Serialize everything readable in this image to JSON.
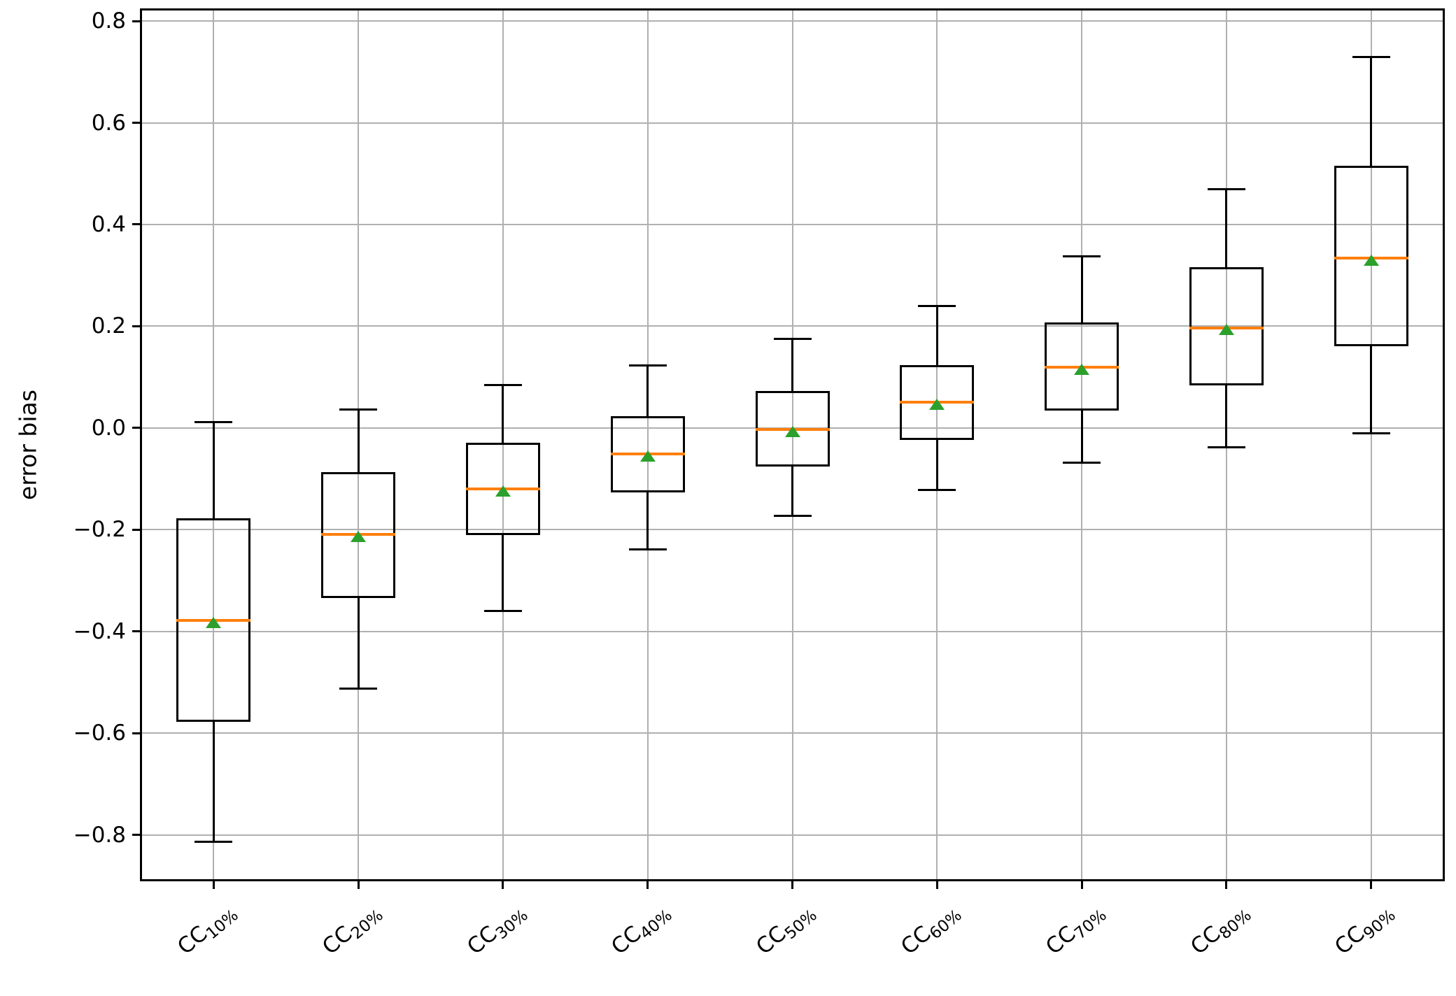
{
  "chart_data": {
    "type": "box",
    "title": "",
    "xlabel": "",
    "ylabel": "error bias",
    "ylim": [
      -0.888,
      0.822
    ],
    "grid": true,
    "ytick_values": [
      0.8,
      0.6,
      0.4,
      0.2,
      0.0,
      -0.2,
      -0.4,
      -0.6,
      -0.8
    ],
    "ytick_labels": [
      "0.8",
      "0.6",
      "0.4",
      "0.2",
      "0.0",
      "−0.2",
      "−0.4",
      "−0.6",
      "−0.8"
    ],
    "categories": [
      {
        "base": "CC",
        "sub": "10%"
      },
      {
        "base": "CC",
        "sub": "20%"
      },
      {
        "base": "CC",
        "sub": "30%"
      },
      {
        "base": "CC",
        "sub": "40%"
      },
      {
        "base": "CC",
        "sub": "50%"
      },
      {
        "base": "CC",
        "sub": "60%"
      },
      {
        "base": "CC",
        "sub": "70%"
      },
      {
        "base": "CC",
        "sub": "80%"
      },
      {
        "base": "CC",
        "sub": "90%"
      }
    ],
    "boxes": [
      {
        "label": "CC_10%",
        "whislo": -0.813,
        "q1": -0.577,
        "med": -0.378,
        "q3": -0.178,
        "whishi": 0.011,
        "mean": -0.382
      },
      {
        "label": "CC_20%",
        "whislo": -0.512,
        "q1": -0.334,
        "med": -0.209,
        "q3": -0.087,
        "whishi": 0.037,
        "mean": -0.213
      },
      {
        "label": "CC_30%",
        "whislo": -0.36,
        "q1": -0.211,
        "med": -0.12,
        "q3": -0.029,
        "whishi": 0.085,
        "mean": -0.124
      },
      {
        "label": "CC_40%",
        "whislo": -0.238,
        "q1": -0.126,
        "med": -0.051,
        "q3": 0.024,
        "whishi": 0.123,
        "mean": -0.055
      },
      {
        "label": "CC_50%",
        "whislo": -0.172,
        "q1": -0.075,
        "med": -0.003,
        "q3": 0.073,
        "whishi": 0.175,
        "mean": -0.007
      },
      {
        "label": "CC_60%",
        "whislo": -0.121,
        "q1": -0.023,
        "med": 0.051,
        "q3": 0.124,
        "whishi": 0.24,
        "mean": 0.047
      },
      {
        "label": "CC_70%",
        "whislo": -0.068,
        "q1": 0.034,
        "med": 0.119,
        "q3": 0.207,
        "whishi": 0.337,
        "mean": 0.115
      },
      {
        "label": "CC_80%",
        "whislo": -0.038,
        "q1": 0.084,
        "med": 0.197,
        "q3": 0.316,
        "whishi": 0.469,
        "mean": 0.194
      },
      {
        "label": "CC_90%",
        "whislo": -0.01,
        "q1": 0.161,
        "med": 0.334,
        "q3": 0.515,
        "whishi": 0.729,
        "mean": 0.33
      }
    ]
  },
  "colors": {
    "median": "#ff7f0e",
    "mean": "#2ca02c",
    "line": "#000000",
    "grid": "#b0b0b0",
    "background": "#ffffff"
  }
}
